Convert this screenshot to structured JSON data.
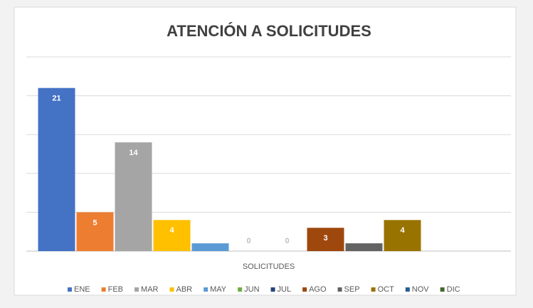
{
  "chart_data": {
    "type": "bar",
    "title": "ATENCIÓN A SOLICITUDES",
    "categories": [
      "SOLICITUDES"
    ],
    "series": [
      {
        "name": "ENE",
        "color": "#4472c4",
        "values": [
          21
        ]
      },
      {
        "name": "FEB",
        "color": "#ed7d31",
        "values": [
          5
        ]
      },
      {
        "name": "MAR",
        "color": "#a5a5a5",
        "values": [
          14
        ]
      },
      {
        "name": "ABR",
        "color": "#ffc000",
        "values": [
          4
        ]
      },
      {
        "name": "MAY",
        "color": "#5b9bd5",
        "values": [
          1
        ]
      },
      {
        "name": "JUN",
        "color": "#70ad47",
        "values": [
          0
        ]
      },
      {
        "name": "JUL",
        "color": "#264478",
        "values": [
          0
        ]
      },
      {
        "name": "AGO",
        "color": "#9e480e",
        "values": [
          3
        ]
      },
      {
        "name": "SEP",
        "color": "#636363",
        "values": [
          1
        ]
      },
      {
        "name": "OCT",
        "color": "#997300",
        "values": [
          4
        ]
      },
      {
        "name": "NOV",
        "color": "#255e91",
        "values": [
          null
        ]
      },
      {
        "name": "DIC",
        "color": "#43682b",
        "values": [
          null
        ]
      }
    ],
    "ylim": [
      0,
      25
    ],
    "yticks": [
      0,
      5,
      10,
      15,
      20,
      25
    ],
    "grid": true,
    "legend": "bottom"
  }
}
